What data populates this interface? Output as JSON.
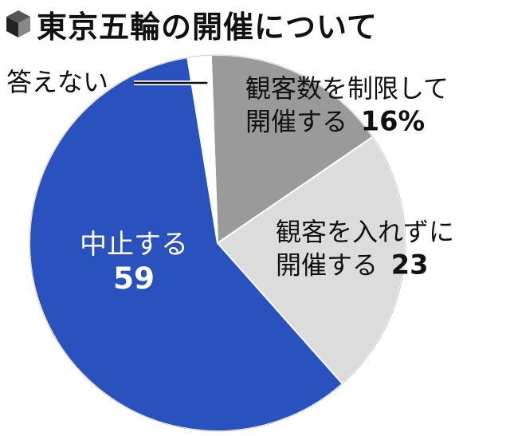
{
  "header": {
    "title": "東京五輪の開催について"
  },
  "chart_data": {
    "type": "pie",
    "title": "東京五輪の開催について",
    "start_angle_deg": -2,
    "direction": "clockwise",
    "slices": [
      {
        "label_lines": [
          "観客数を制限して",
          "開催する"
        ],
        "value": 16,
        "value_label": "16%",
        "color": "#9a9a9a"
      },
      {
        "label_lines": [
          "観客を入れずに",
          "開催する"
        ],
        "value": 23,
        "value_label": "23",
        "color": "#dcdcdc"
      },
      {
        "label_lines": [
          "中止する"
        ],
        "value": 59,
        "value_label": "59",
        "color": "#2a52be"
      },
      {
        "label_lines": [
          "答えない"
        ],
        "value": 2,
        "value_label": "",
        "color": "#ffffff"
      }
    ]
  }
}
